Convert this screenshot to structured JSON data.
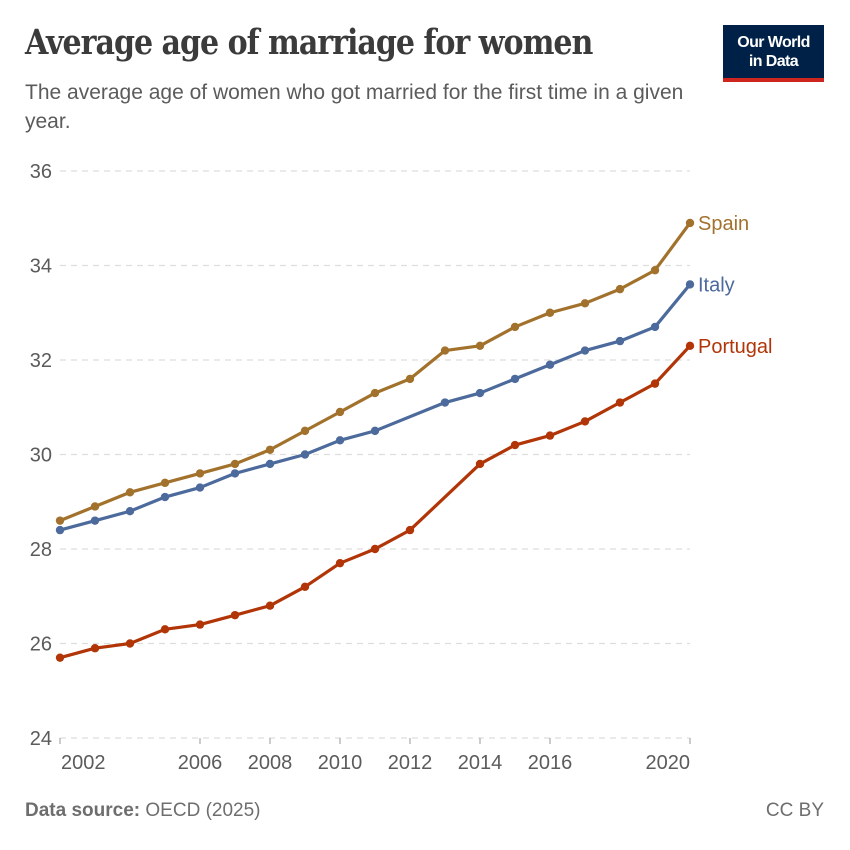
{
  "header": {
    "title": "Average age of marriage for women",
    "subtitle": "The average age of women who got married for the first time in a given year.",
    "logo_line1": "Our World",
    "logo_line2": "in Data"
  },
  "footer": {
    "source_label": "Data source:",
    "source_value": "OECD (2025)",
    "license": "CC BY"
  },
  "chart_data": {
    "type": "line",
    "title": "Average age of marriage for women",
    "subtitle": "The average age of women who got married for the first time in a given year.",
    "xlabel": "",
    "ylabel": "",
    "x": [
      2002,
      2003,
      2004,
      2005,
      2006,
      2007,
      2008,
      2009,
      2010,
      2011,
      2012,
      2013,
      2014,
      2015,
      2016,
      2017,
      2018,
      2019,
      2020
    ],
    "xlim": [
      2002,
      2020
    ],
    "ylim": [
      24,
      36
    ],
    "x_ticks": [
      2002,
      2006,
      2008,
      2010,
      2012,
      2014,
      2016,
      2020
    ],
    "y_ticks": [
      24,
      26,
      28,
      30,
      32,
      34,
      36
    ],
    "grid": "horizontal dashed",
    "legend": "inline labels at right end of lines",
    "series": [
      {
        "name": "Spain",
        "color": "#a2722d",
        "values": [
          28.6,
          28.9,
          29.2,
          29.4,
          29.6,
          29.8,
          30.1,
          30.5,
          30.9,
          31.3,
          31.6,
          32.2,
          32.3,
          32.7,
          33.0,
          33.2,
          33.5,
          33.9,
          34.9
        ]
      },
      {
        "name": "Italy",
        "color": "#4c6a9c",
        "values": [
          28.4,
          28.6,
          28.8,
          29.1,
          29.3,
          29.6,
          29.8,
          30.0,
          30.3,
          30.5,
          null,
          31.1,
          31.3,
          31.6,
          31.9,
          32.2,
          32.4,
          32.7,
          33.6
        ]
      },
      {
        "name": "Portugal",
        "color": "#b13507",
        "values": [
          25.7,
          25.9,
          26.0,
          26.3,
          26.4,
          26.6,
          26.8,
          27.2,
          27.7,
          28.0,
          28.4,
          null,
          29.8,
          30.2,
          30.4,
          30.7,
          31.1,
          31.5,
          32.3
        ]
      }
    ]
  }
}
